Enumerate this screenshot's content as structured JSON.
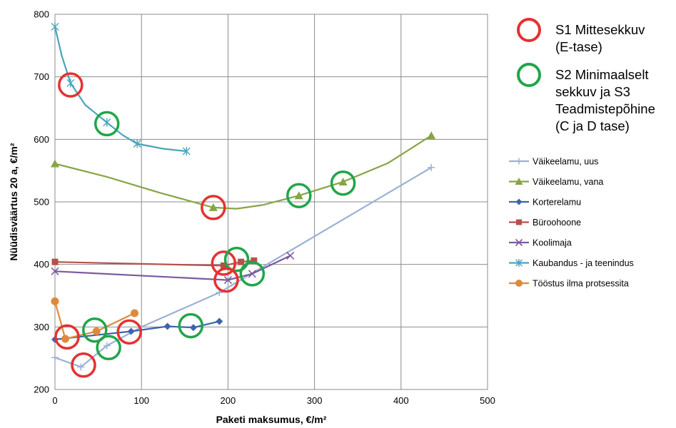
{
  "chart_data": {
    "type": "scatter",
    "title": "",
    "xlabel": "Paketi maksumus, €/m²",
    "ylabel": "Nüüdisväärtus 20 a, €/m²",
    "xlim": [
      0,
      500
    ],
    "ylim": [
      200,
      800
    ],
    "x_ticks": [
      "0",
      "100",
      "200",
      "300",
      "400",
      "500"
    ],
    "y_ticks": [
      "200",
      "300",
      "400",
      "500",
      "600",
      "700",
      "800"
    ],
    "grid": true,
    "legend_position": "right",
    "series": [
      {
        "name": "Väikeelamu, uus",
        "color": "#9BB1D4",
        "marker": "plus",
        "smooth": false,
        "points": [
          [
            0,
            251
          ],
          [
            30,
            236
          ],
          [
            60,
            270
          ],
          [
            100,
            300
          ],
          [
            190,
            355
          ],
          [
            435,
            555
          ]
        ]
      },
      {
        "name": "Väikeelamu, vana",
        "color": "#86A545",
        "marker": "triangle",
        "smooth": true,
        "points": [
          [
            0,
            561
          ],
          [
            183,
            491
          ],
          [
            282,
            510
          ],
          [
            333,
            532
          ],
          [
            435,
            606
          ]
        ],
        "curve": [
          [
            0,
            561
          ],
          [
            60,
            540
          ],
          [
            120,
            515
          ],
          [
            183,
            491
          ],
          [
            210,
            489
          ],
          [
            240,
            495
          ],
          [
            282,
            510
          ],
          [
            333,
            532
          ],
          [
            385,
            562
          ],
          [
            435,
            606
          ]
        ]
      },
      {
        "name": "Korterelamu",
        "color": "#3A65A8",
        "marker": "diamond",
        "smooth": false,
        "points": [
          [
            0,
            280
          ],
          [
            88,
            293
          ],
          [
            130,
            301
          ],
          [
            160,
            299
          ],
          [
            190,
            309
          ]
        ]
      },
      {
        "name": "Büroohoone",
        "color": "#B5514B",
        "marker": "square",
        "smooth": false,
        "points": [
          [
            0,
            404
          ],
          [
            195,
            398
          ],
          [
            215,
            404
          ],
          [
            230,
            406
          ]
        ]
      },
      {
        "name": "Koolimaja",
        "color": "#7C5B9E",
        "marker": "x",
        "smooth": false,
        "points": [
          [
            0,
            389
          ],
          [
            200,
            375
          ],
          [
            228,
            385
          ],
          [
            272,
            414
          ]
        ]
      },
      {
        "name": "Kaubandus - ja teenindus",
        "color": "#4BA3BC",
        "marker": "star",
        "smooth": true,
        "points": [
          [
            0,
            780
          ],
          [
            18,
            690
          ],
          [
            60,
            627
          ],
          [
            95,
            593
          ],
          [
            152,
            581
          ]
        ],
        "curve": [
          [
            0,
            780
          ],
          [
            8,
            733
          ],
          [
            18,
            690
          ],
          [
            35,
            655
          ],
          [
            60,
            627
          ],
          [
            78,
            607
          ],
          [
            95,
            593
          ],
          [
            125,
            585
          ],
          [
            152,
            581
          ]
        ]
      },
      {
        "name": "Tööstus ilma protsessita",
        "color": "#E0893B",
        "marker": "circle",
        "smooth": false,
        "points": [
          [
            0,
            341
          ],
          [
            12,
            281
          ],
          [
            48,
            293
          ],
          [
            92,
            322
          ]
        ]
      }
    ],
    "marker_legend": [
      {
        "label_lines": [
          "S1 Mittesekkuv",
          "(E-tase)"
        ],
        "color": "#E53131"
      },
      {
        "label_lines": [
          "S2 Minimaalselt",
          "sekkuv ja S3",
          "Teadmistepõhine",
          "(C ja D tase)"
        ],
        "color": "#21A54A"
      }
    ],
    "highlight_circles": [
      {
        "x": 18,
        "y": 687,
        "color": "#E53131"
      },
      {
        "x": 60,
        "y": 625,
        "color": "#21A54A"
      },
      {
        "x": 183,
        "y": 491,
        "color": "#E53131"
      },
      {
        "x": 282,
        "y": 510,
        "color": "#21A54A"
      },
      {
        "x": 333,
        "y": 530,
        "color": "#21A54A"
      },
      {
        "x": 195,
        "y": 402,
        "color": "#E53131"
      },
      {
        "x": 210,
        "y": 408,
        "color": "#21A54A"
      },
      {
        "x": 198,
        "y": 375,
        "color": "#E53131"
      },
      {
        "x": 228,
        "y": 385,
        "color": "#21A54A"
      },
      {
        "x": 157,
        "y": 302,
        "color": "#21A54A"
      },
      {
        "x": 14,
        "y": 284,
        "color": "#E53131"
      },
      {
        "x": 86,
        "y": 292,
        "color": "#E53131"
      },
      {
        "x": 46,
        "y": 295,
        "color": "#21A54A"
      },
      {
        "x": 62,
        "y": 267,
        "color": "#21A54A"
      },
      {
        "x": 33,
        "y": 239,
        "color": "#E53131"
      }
    ]
  }
}
